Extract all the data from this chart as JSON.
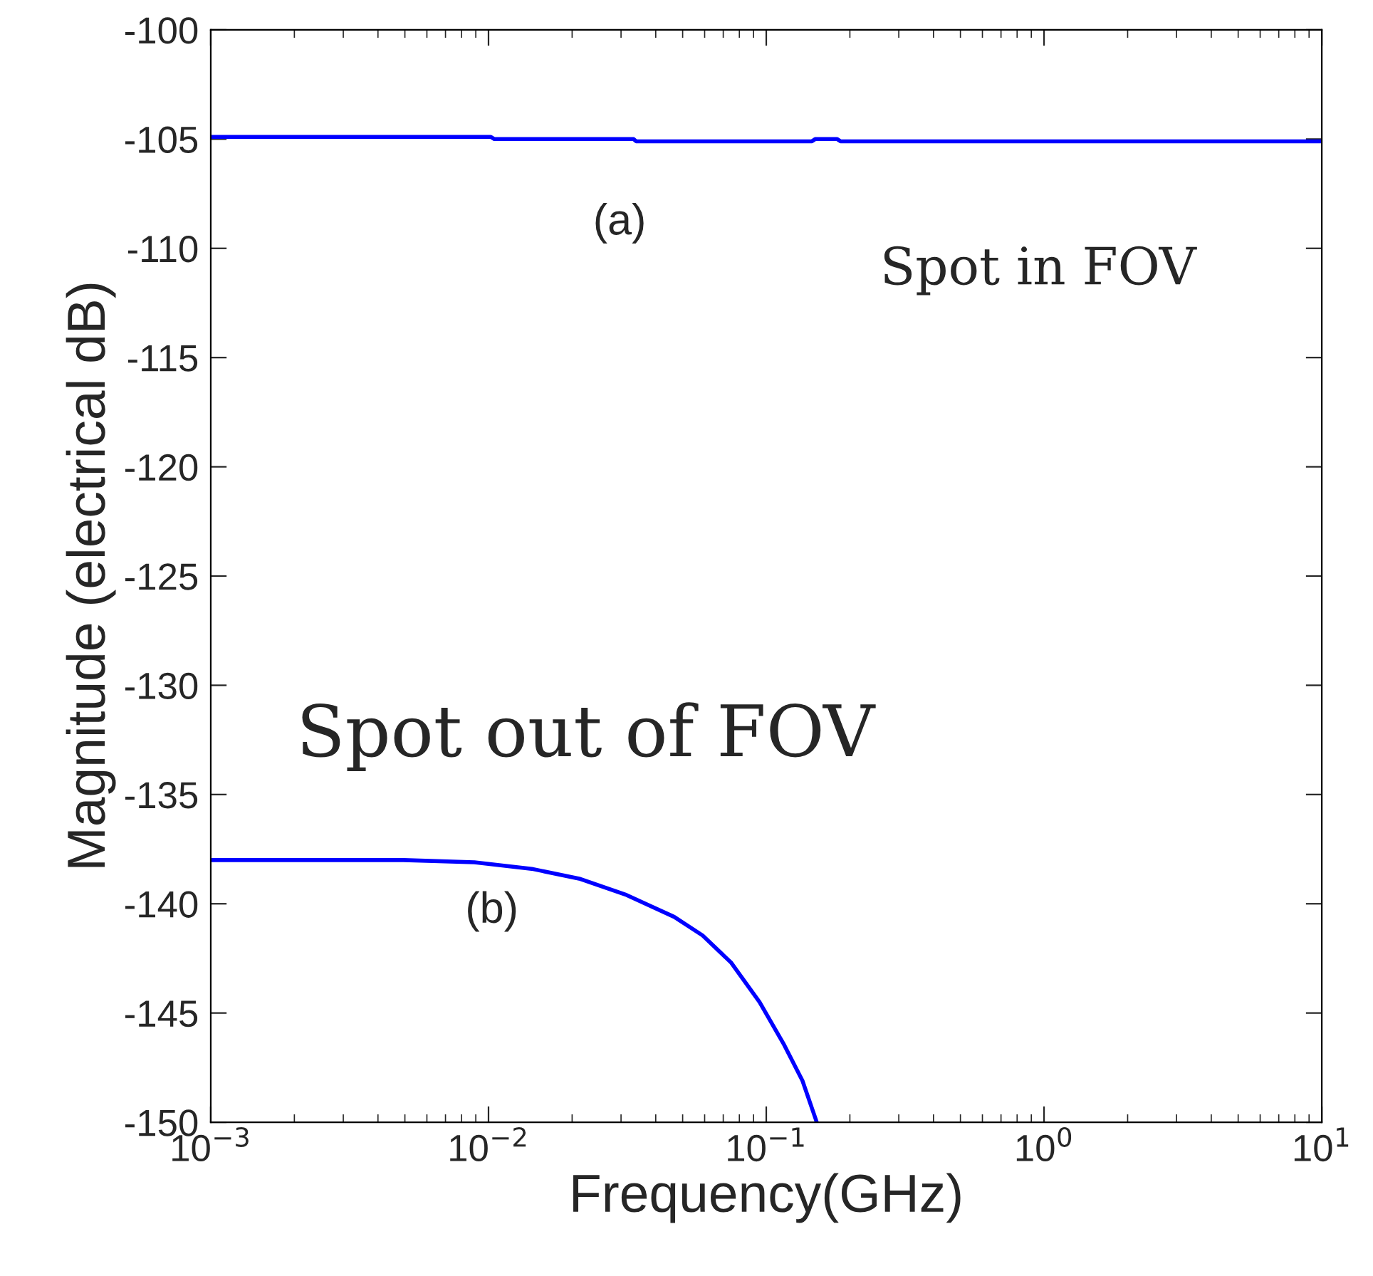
{
  "chart_data": {
    "type": "line",
    "xlabel": "Frequency(GHz)",
    "ylabel": "Magnitude (electrical dB)",
    "log": "x",
    "xlim": [
      0.001,
      10
    ],
    "xticks": [
      {
        "value": 0.001,
        "label": "10$^{−3}$"
      },
      {
        "value": 0.01,
        "label": "10$^{−2}$"
      },
      {
        "value": 0.1,
        "label": "10$^{−1}$"
      },
      {
        "value": 1,
        "label": "10$^{0}$"
      },
      {
        "value": 10,
        "label": "10$^{1}$"
      }
    ],
    "ylim": [
      -150,
      -100
    ],
    "yticks": [
      -150,
      -145,
      -140,
      -135,
      -130,
      -125,
      -120,
      -115,
      -110,
      -105,
      -100
    ],
    "grid": false,
    "legend": false,
    "series": [
      {
        "color": "#0000ff",
        "x": [
          0.001,
          0.0102,
          0.0105,
          0.0333,
          0.034,
          0.146,
          0.15,
          0.18,
          0.185,
          10
        ],
        "values": [
          -104.9,
          -104.9,
          -105.0,
          -105.0,
          -105.1,
          -105.1,
          -105.0,
          -105.0,
          -105.1,
          -105.1
        ]
      },
      {
        "color": "#0000ff",
        "x": [
          0.001,
          0.00494,
          0.0089,
          0.0143,
          0.0212,
          0.0314,
          0.0466,
          0.059,
          0.0748,
          0.0946,
          0.1153,
          0.135,
          0.152
        ],
        "values": [
          -138.0,
          -138.0,
          -138.1,
          -138.4,
          -138.85,
          -139.6,
          -140.6,
          -141.45,
          -142.7,
          -144.5,
          -146.4,
          -148.1,
          -150.0
        ]
      }
    ],
    "annotations": [
      "(a)",
      "(b)",
      "Spot in FOV",
      "Spot out of FOV"
    ]
  }
}
